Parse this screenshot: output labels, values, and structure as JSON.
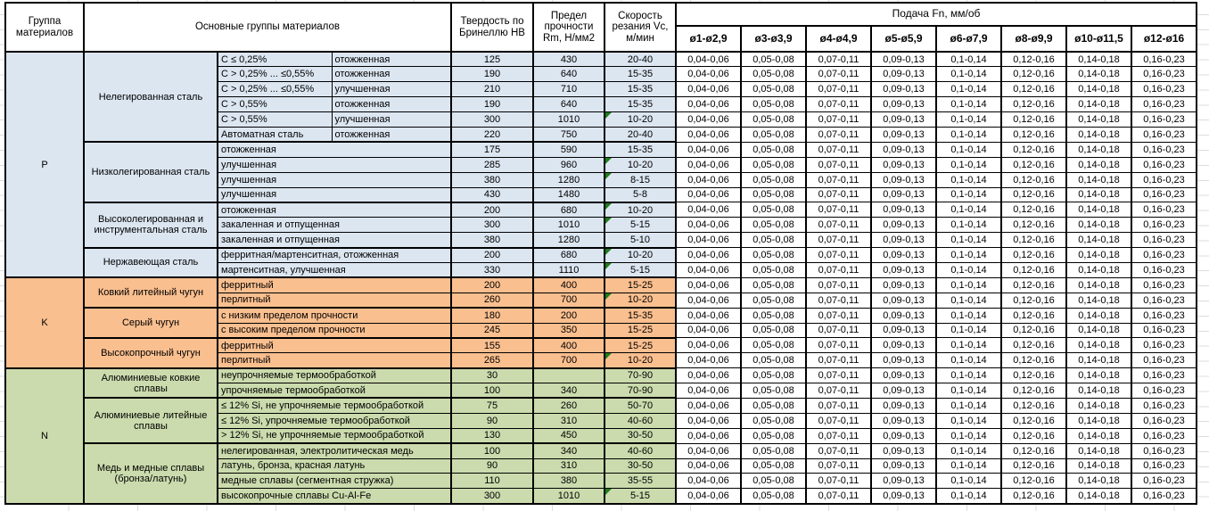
{
  "header": {
    "col_group": "Группа материалов",
    "col_main": "Основные группы материалов",
    "col_hb": "Твердость по Бринеллю HB",
    "col_rm": "Предел прочности Rm, Н/мм2",
    "col_vc": "Скорость резания Vc, м/мин",
    "feed_title": "Подача Fn, мм/об",
    "feed_cols": [
      "ø1-ø2,9",
      "ø3-ø3,9",
      "ø4-ø4,9",
      "ø5-ø5,9",
      "ø6-ø7,9",
      "ø8-ø9,9",
      "ø10-ø11,5",
      "ø12-ø16"
    ]
  },
  "feed_values": [
    "0,04-0,06",
    "0,05-0,08",
    "0,07-0,11",
    "0,09-0,13",
    "0,1-0,14",
    "0,12-0,16",
    "0,14-0,18",
    "0,16-0,23"
  ],
  "colors": {
    "p": "#DCE6F1",
    "k": "#FABF8F",
    "n": "#CBDBAD",
    "flag": "#1E7E1E",
    "border": "#000000"
  },
  "groups": [
    {
      "code": "P",
      "color_key": "p",
      "subgroups": [
        {
          "name": "Нелегированная сталь",
          "rows": [
            {
              "spec": "C ≤ 0,25%",
              "state": "отожженная",
              "hb": "125",
              "rm": "430",
              "vc": "20-40",
              "marker": false
            },
            {
              "spec": "C > 0,25% ... ≤0,55%",
              "state": "отожженная",
              "hb": "190",
              "rm": "640",
              "vc": "15-35",
              "marker": false
            },
            {
              "spec": "C > 0,25% ... ≤0,55%",
              "state": "улучшенная",
              "hb": "210",
              "rm": "710",
              "vc": "15-35",
              "marker": false
            },
            {
              "spec": "C > 0,55%",
              "state": "отожженная",
              "hb": "190",
              "rm": "640",
              "vc": "15-35",
              "marker": false
            },
            {
              "spec": "C > 0,55%",
              "state": "улучшенная",
              "hb": "300",
              "rm": "1010",
              "vc": "10-20",
              "marker": true
            },
            {
              "spec": "Автоматная сталь",
              "state": "отожженная",
              "hb": "220",
              "rm": "750",
              "vc": "20-40",
              "marker": false
            }
          ]
        },
        {
          "name": "Низколегированная сталь",
          "rows": [
            {
              "spec": "отожженная",
              "state": null,
              "hb": "175",
              "rm": "590",
              "vc": "15-35",
              "marker": false
            },
            {
              "spec": "улучшенная",
              "state": null,
              "hb": "285",
              "rm": "960",
              "vc": "10-20",
              "marker": true
            },
            {
              "spec": "улучшенная",
              "state": null,
              "hb": "380",
              "rm": "1280",
              "vc": "8-15",
              "marker": true
            },
            {
              "spec": "улучшенная",
              "state": null,
              "hb": "430",
              "rm": "1480",
              "vc": "5-8",
              "marker": false
            }
          ]
        },
        {
          "name": "Высоколегированная и инструментальная сталь",
          "rows": [
            {
              "spec": "отожженная",
              "state": null,
              "hb": "200",
              "rm": "680",
              "vc": "10-20",
              "marker": true
            },
            {
              "spec": "закаленная и отпущенная",
              "state": null,
              "hb": "300",
              "rm": "1010",
              "vc": "5-15",
              "marker": true
            },
            {
              "spec": "закаленная и отпущенная",
              "state": null,
              "hb": "380",
              "rm": "1280",
              "vc": "5-10",
              "marker": false
            }
          ]
        },
        {
          "name": "Нержавеющая сталь",
          "rows": [
            {
              "spec": "ферритная/мартенситная, отожженная",
              "state": null,
              "hb": "200",
              "rm": "680",
              "vc": "10-20",
              "marker": true
            },
            {
              "spec": "мартенситная, улучшенная",
              "state": null,
              "hb": "330",
              "rm": "1110",
              "vc": "5-15",
              "marker": true
            }
          ]
        }
      ]
    },
    {
      "code": "K",
      "color_key": "k",
      "subgroups": [
        {
          "name": "Ковкий литейный чугун",
          "rows": [
            {
              "spec": "ферритный",
              "state": null,
              "hb": "200",
              "rm": "400",
              "vc": "15-25",
              "marker": false
            },
            {
              "spec": "перлитный",
              "state": null,
              "hb": "260",
              "rm": "700",
              "vc": "10-20",
              "marker": true
            }
          ]
        },
        {
          "name": "Серый чугун",
          "rows": [
            {
              "spec": "с низким пределом прочности",
              "state": null,
              "hb": "180",
              "rm": "200",
              "vc": "15-35",
              "marker": false
            },
            {
              "spec": "с высоким пределом прочности",
              "state": null,
              "hb": "245",
              "rm": "350",
              "vc": "15-25",
              "marker": false
            }
          ]
        },
        {
          "name": "Высокопрочный чугун",
          "rows": [
            {
              "spec": "ферритный",
              "state": null,
              "hb": "155",
              "rm": "400",
              "vc": "15-25",
              "marker": false
            },
            {
              "spec": "перлитный",
              "state": null,
              "hb": "265",
              "rm": "700",
              "vc": "10-20",
              "marker": true
            }
          ]
        }
      ]
    },
    {
      "code": "N",
      "color_key": "n",
      "subgroups": [
        {
          "name": "Алюминиевые ковкие сплавы",
          "rows": [
            {
              "spec": "неупрочняемые термообработкой",
              "state": null,
              "hb": "30",
              "rm": "",
              "vc": "70-90",
              "marker": false
            },
            {
              "spec": "упрочняемые термообработкой",
              "state": null,
              "hb": "100",
              "rm": "340",
              "vc": "70-90",
              "marker": false
            }
          ]
        },
        {
          "name": "Алюминиевые литейные сплавы",
          "rows": [
            {
              "spec": "≤ 12% Si, не упрочняемые термообработкой",
              "state": null,
              "hb": "75",
              "rm": "260",
              "vc": "50-70",
              "marker": false
            },
            {
              "spec": "≤ 12% Si, упрочняемые термообработкой",
              "state": null,
              "hb": "90",
              "rm": "310",
              "vc": "40-60",
              "marker": false
            },
            {
              "spec": "> 12% Si, не упрочняемые термообработкой",
              "state": null,
              "hb": "130",
              "rm": "450",
              "vc": "30-50",
              "marker": false
            }
          ]
        },
        {
          "name": "Медь и медные сплавы (бронза/латунь)",
          "rows": [
            {
              "spec": "нелегированная, электролитическая медь",
              "state": null,
              "hb": "100",
              "rm": "340",
              "vc": "40-60",
              "marker": false
            },
            {
              "spec": "латунь, бронза, красная латунь",
              "state": null,
              "hb": "90",
              "rm": "310",
              "vc": "30-50",
              "marker": false
            },
            {
              "spec": "медные сплавы (сегментная стружка)",
              "state": null,
              "hb": "110",
              "rm": "380",
              "vc": "35-55",
              "marker": false
            },
            {
              "spec": "высокопрочные сплавы Cu-Al-Fe",
              "state": null,
              "hb": "300",
              "rm": "1010",
              "vc": "5-15",
              "marker": true
            }
          ]
        }
      ]
    }
  ]
}
